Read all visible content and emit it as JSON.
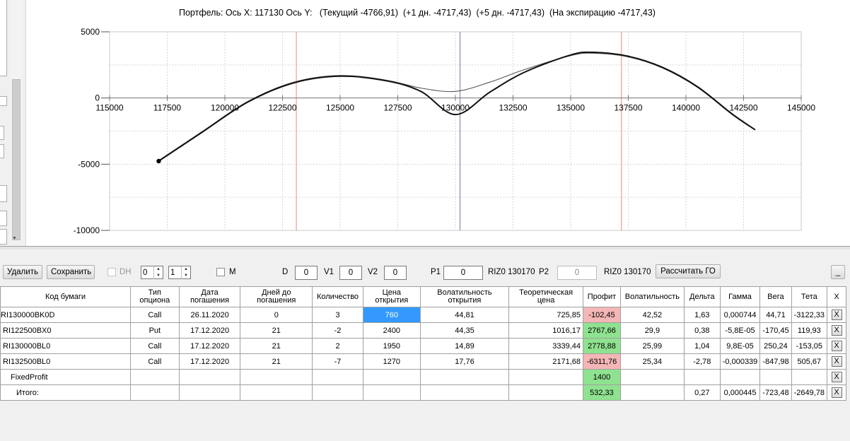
{
  "chart": {
    "title": "Портфель: Ось X: 117130 Ось Y:   (Текущий -4766,91)  (+1 дн. -4717,43)  (+5 дн. -4717,43)  (На экспирацию -4717,43)",
    "x_ticks": [
      "115000",
      "117500",
      "120000",
      "122500",
      "125000",
      "127500",
      "130000",
      "132500",
      "135000",
      "137500",
      "140000",
      "142500",
      "145000"
    ],
    "y_ticks": [
      "5000",
      "0",
      "-5000",
      "-10000"
    ]
  },
  "chart_data": {
    "type": "line",
    "xlim": [
      115000,
      145000
    ],
    "ylim": [
      -10000,
      5000
    ],
    "x_ticks": [
      115000,
      117500,
      120000,
      122500,
      125000,
      127500,
      130000,
      132500,
      135000,
      137500,
      140000,
      142500,
      145000
    ],
    "y_ticks": [
      5000,
      0,
      -5000,
      -10000
    ],
    "grid": true,
    "vertical_lines": [
      {
        "x": 123100,
        "color": "#f2a0a0"
      },
      {
        "x": 130200,
        "color": "#8c95a8"
      },
      {
        "x": 137200,
        "color": "#f2a0a0"
      }
    ],
    "marker": {
      "x": 117130,
      "y": -4767
    },
    "series": [
      {
        "color": "#111111",
        "x": [
          117130,
          119000,
          121000,
          123000,
          125000,
          127000,
          128500,
          130000,
          131500,
          133000,
          135000,
          136000,
          137500,
          139000,
          140500,
          142000,
          143000
        ],
        "y": [
          -4767,
          -2600,
          -300,
          1150,
          1650,
          1300,
          500,
          -1250,
          450,
          1950,
          3250,
          3450,
          3150,
          2300,
          850,
          -1200,
          -2400
        ]
      },
      {
        "color": "#555555",
        "x": [
          117130,
          119000,
          121000,
          123000,
          125000,
          127000,
          128500,
          130000,
          131500,
          133000,
          135000,
          136000,
          137500,
          139000,
          140500,
          142000,
          143000
        ],
        "y": [
          -4717,
          -2550,
          -250,
          1200,
          1700,
          1350,
          750,
          500,
          1200,
          2150,
          3200,
          3380,
          3100,
          2250,
          800,
          -1250,
          -2420
        ]
      }
    ]
  },
  "toolbar": {
    "delete_label": "Удалить",
    "save_label": "Сохранить",
    "dh_label": "DH",
    "spin1_value": "0",
    "spin2_value": "1",
    "m_label": "M",
    "d_label": "D",
    "d_value": "0",
    "v1_label": "V1",
    "v1_value": "0",
    "v2_label": "V2",
    "v2_value": "0",
    "p1_label": "P1",
    "p1_value": "0",
    "p1_instrument": "RIZ0 130170",
    "p2_label": "P2",
    "p2_value": "0",
    "p2_instrument": "RIZ0 130170",
    "calc_label": "Рассчитать ГО",
    "min_label": "_"
  },
  "grid": {
    "columns": [
      "Код бумаги",
      "Тип опциона",
      "Дата погашения",
      "Дней до погашения",
      "Количество",
      "Цена открытия",
      "Волатильность открытия",
      "Теоретическая цена",
      "Профит",
      "Волатильность",
      "Дельта",
      "Гамма",
      "Вега",
      "Тета",
      "X"
    ],
    "rows": [
      {
        "code": "RI130000BK0D",
        "type": "Call",
        "date": "26.11.2020",
        "days": "0",
        "qty": "3",
        "price": "760",
        "vol_open": "44,81",
        "theor": "725,85",
        "profit": "-102,45",
        "profit_state": "neg",
        "vol": "42,52",
        "delta": "1,63",
        "gamma": "0,000744",
        "vega": "44,71",
        "theta": "-3122,33",
        "x": "X",
        "price_selected": true
      },
      {
        "code": "RI122500BX0",
        "type": "Put",
        "date": "17.12.2020",
        "days": "21",
        "qty": "-2",
        "price": "2400",
        "vol_open": "44,35",
        "theor": "1016,17",
        "profit": "2767,66",
        "profit_state": "pos",
        "vol": "29,9",
        "delta": "0,38",
        "gamma": "-5,8E-05",
        "vega": "-170,45",
        "theta": "119,93",
        "x": "X"
      },
      {
        "code": "RI130000BL0",
        "type": "Call",
        "date": "17.12.2020",
        "days": "21",
        "qty": "2",
        "price": "1950",
        "vol_open": "14,89",
        "theor": "3339,44",
        "profit": "2778,88",
        "profit_state": "pos",
        "vol": "25,99",
        "delta": "1,04",
        "gamma": "9,8E-05",
        "vega": "250,24",
        "theta": "-153,05",
        "x": "X"
      },
      {
        "code": "RI132500BL0",
        "type": "Call",
        "date": "17.12.2020",
        "days": "21",
        "qty": "-7",
        "price": "1270",
        "vol_open": "17,76",
        "theor": "2171,68",
        "profit": "-6311,76",
        "profit_state": "neg",
        "vol": "25,34",
        "delta": "-2,78",
        "gamma": "-0,000339",
        "vega": "-847,98",
        "theta": "505,67",
        "x": "X"
      }
    ],
    "fixed_profit": {
      "label": "FixedProfit",
      "profit": "1400",
      "x": "X"
    },
    "total": {
      "label": "Итого:",
      "profit": "532,33",
      "delta": "0,27",
      "gamma": "0,000445",
      "vega": "-723,48",
      "theta": "-2649,78",
      "x": "X"
    }
  }
}
